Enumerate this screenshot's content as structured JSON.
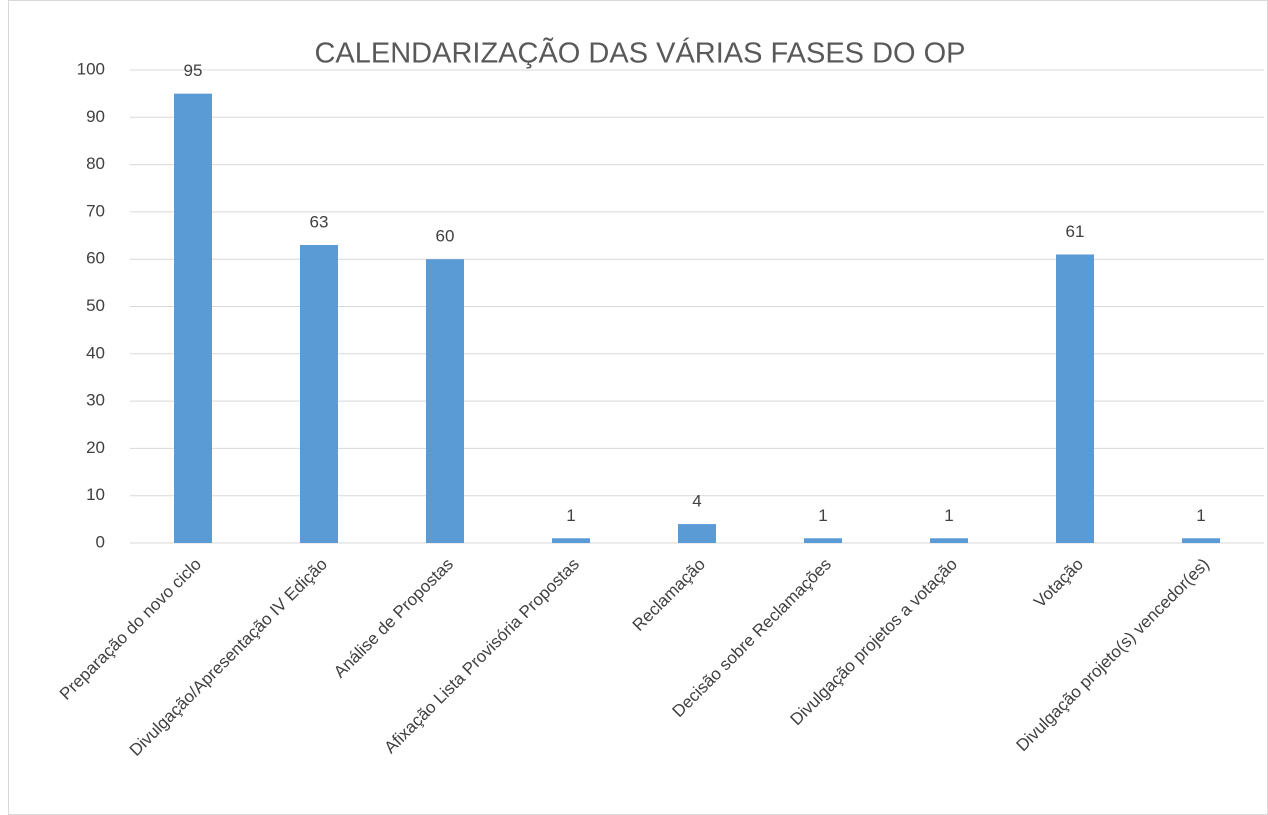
{
  "chart_data": {
    "type": "bar",
    "title": "CALENDARIZAÇÃO DAS VÁRIAS FASES DO OP",
    "categories": [
      "Preparação do novo ciclo",
      "Divulgação/Apresentação IV Edição",
      "Análise de Propostas",
      "Afixação Lista Provisória Propostas",
      "Reclamação",
      "Decisão sobre Reclamações",
      "Divulgação projetos a votação",
      "Votação",
      "Divulgação projeto(s) vencedor(es)"
    ],
    "values": [
      95,
      63,
      60,
      1,
      4,
      1,
      1,
      61,
      1
    ],
    "color": "#5b9bd5",
    "ylim": [
      0,
      100
    ],
    "yticks": [
      0,
      10,
      20,
      30,
      40,
      50,
      60,
      70,
      80,
      90,
      100
    ],
    "grid": true
  }
}
